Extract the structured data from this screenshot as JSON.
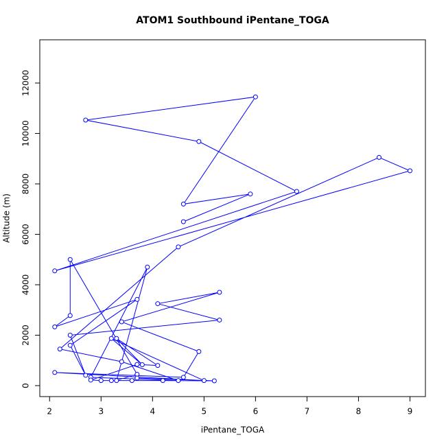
{
  "chart_data": {
    "type": "line",
    "title": "ATOM1 Southbound iPentane_TOGA",
    "x_label": "iPentane_TOGA",
    "y_label": "Altitude (m)",
    "color": "#0000ff",
    "markers": true,
    "x": [
      4.6,
      5.9,
      4.6,
      6.0,
      2.7,
      4.9,
      6.8,
      2.1,
      9.0,
      8.4,
      4.5,
      2.2,
      3.4,
      4.5,
      2.8,
      3.9,
      3.3,
      3.7,
      2.4,
      2.4,
      2.1,
      3.7,
      2.4,
      2.7,
      2.4,
      5.3,
      4.1,
      5.3,
      3.4,
      4.9,
      4.6,
      2.1,
      5.0,
      3.2,
      3.8,
      3.3,
      4.1,
      3.7,
      2.8,
      3.0,
      3.6,
      3.2,
      4.2,
      5.2,
      3.7
    ],
    "y": [
      6500,
      7600,
      7200,
      11450,
      10530,
      9680,
      7700,
      4550,
      8520,
      9050,
      5500,
      1450,
      950,
      200,
      330,
      4700,
      200,
      450,
      5000,
      2780,
      2330,
      3420,
      1600,
      410,
      2000,
      2600,
      3250,
      3700,
      2530,
      1350,
      330,
      520,
      200,
      1870,
      830,
      1870,
      800,
      840,
      220,
      200,
      200,
      200,
      200,
      190,
      300
    ],
    "xlim": [
      1.81,
      9.3
    ],
    "ylim": [
      -435,
      13714
    ],
    "xticks": [
      2,
      3,
      4,
      5,
      6,
      7,
      8,
      9
    ],
    "yticks": [
      0,
      2000,
      4000,
      6000,
      8000,
      10000,
      12000
    ]
  }
}
